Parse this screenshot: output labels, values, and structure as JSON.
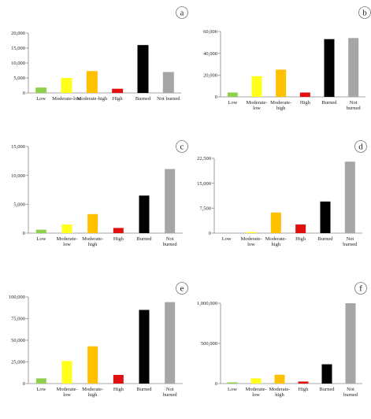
{
  "chart_data": [
    {
      "panel": "a",
      "type": "bar",
      "categories": [
        "Low",
        "Moderate-low",
        "Moderate-high",
        "High",
        "Burned",
        "Not burned"
      ],
      "values": [
        1800,
        5000,
        7300,
        1400,
        16000,
        7000
      ],
      "ylim": [
        0,
        20000
      ],
      "yticks": [
        "0",
        "5,000",
        "10,000",
        "15,000",
        "20,000"
      ],
      "colors": [
        "#8fd14f",
        "#ffff1a",
        "#ffc000",
        "#e01010",
        "#000000",
        "#a6a6a6"
      ]
    },
    {
      "panel": "b",
      "type": "bar",
      "categories": [
        "Low",
        "Moderate-low",
        "Moderate-high",
        "High",
        "Burned",
        "Not burned"
      ],
      "values": [
        4000,
        19000,
        25000,
        4000,
        53000,
        54000
      ],
      "ylim": [
        0,
        60000
      ],
      "yticks": [
        "0",
        "20,000",
        "40,000",
        "60,000"
      ],
      "colors": [
        "#8fd14f",
        "#ffff1a",
        "#ffc000",
        "#e01010",
        "#000000",
        "#a6a6a6"
      ]
    },
    {
      "panel": "c",
      "type": "bar",
      "categories": [
        "Low",
        "Moderate-low",
        "Moderate-high",
        "High",
        "Burned",
        "Not burned"
      ],
      "values": [
        600,
        1500,
        3300,
        900,
        6500,
        11100
      ],
      "ylim": [
        0,
        15000
      ],
      "yticks": [
        "0",
        "5,000",
        "10,000",
        "15,000"
      ],
      "colors": [
        "#8fd14f",
        "#ffff1a",
        "#ffc000",
        "#e01010",
        "#000000",
        "#a6a6a6"
      ]
    },
    {
      "panel": "d",
      "type": "bar",
      "categories": [
        "Low",
        "Moderate-low",
        "Moderate-high",
        "High",
        "Burned",
        "Not burned"
      ],
      "values": [
        0,
        300,
        6200,
        2600,
        9500,
        21500
      ],
      "ylim": [
        0,
        22500
      ],
      "yticks": [
        "0",
        "7,500",
        "15,000",
        "22,500"
      ],
      "colors": [
        "#8fd14f",
        "#ffff1a",
        "#ffc000",
        "#e01010",
        "#000000",
        "#a6a6a6"
      ]
    },
    {
      "panel": "e",
      "type": "bar",
      "categories": [
        "Low",
        "Moderate-low",
        "Moderate-high",
        "High",
        "Burned",
        "Not burned"
      ],
      "values": [
        6000,
        26000,
        43000,
        10000,
        85000,
        94000
      ],
      "ylim": [
        0,
        100000
      ],
      "yticks": [
        "0",
        "25,000",
        "50,000",
        "75,000",
        "100,000"
      ],
      "colors": [
        "#8fd14f",
        "#ffff1a",
        "#ffc000",
        "#e01010",
        "#000000",
        "#a6a6a6"
      ]
    },
    {
      "panel": "f",
      "type": "bar",
      "categories": [
        "Low",
        "Moderate-low",
        "Moderate-high",
        "High",
        "Burned",
        "Not burned"
      ],
      "values": [
        15000,
        65000,
        110000,
        25000,
        240000,
        1000000
      ],
      "ylim": [
        0,
        1000000
      ],
      "yticks": [
        "0",
        "500,000",
        "1,000,000"
      ],
      "colors": [
        "#8fd14f",
        "#ffff1a",
        "#ffc000",
        "#e01010",
        "#000000",
        "#a6a6a6"
      ]
    }
  ]
}
